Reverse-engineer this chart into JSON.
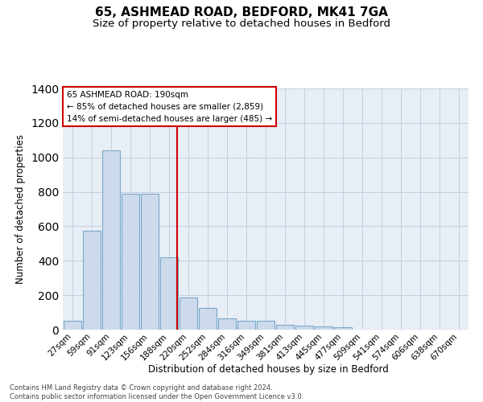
{
  "title1": "65, ASHMEAD ROAD, BEDFORD, MK41 7GA",
  "title2": "Size of property relative to detached houses in Bedford",
  "xlabel": "Distribution of detached houses by size in Bedford",
  "ylabel": "Number of detached properties",
  "bar_labels": [
    "27sqm",
    "59sqm",
    "91sqm",
    "123sqm",
    "156sqm",
    "188sqm",
    "220sqm",
    "252sqm",
    "284sqm",
    "316sqm",
    "349sqm",
    "381sqm",
    "413sqm",
    "445sqm",
    "477sqm",
    "509sqm",
    "541sqm",
    "574sqm",
    "606sqm",
    "638sqm",
    "670sqm"
  ],
  "bar_values": [
    50,
    575,
    1040,
    790,
    790,
    420,
    185,
    125,
    65,
    50,
    50,
    28,
    25,
    18,
    12,
    0,
    0,
    0,
    0,
    0,
    0
  ],
  "bar_color": "#ccdaeb",
  "bar_edge_color": "#7aa8cc",
  "vline_color": "#cc0000",
  "annotation_line1": "65 ASHMEAD ROAD: 190sqm",
  "annotation_line2": "← 85% of detached houses are smaller (2,859)",
  "annotation_line3": "14% of semi-detached houses are larger (485) →",
  "annotation_box_color": "#ffffff",
  "annotation_box_edge": "#cc0000",
  "ylim": [
    0,
    1400
  ],
  "yticks": [
    0,
    200,
    400,
    600,
    800,
    1000,
    1200,
    1400
  ],
  "footnote": "Contains HM Land Registry data © Crown copyright and database right 2024.\nContains public sector information licensed under the Open Government Licence v3.0.",
  "plot_bg_color": "#e8eef5",
  "grid_color": "#c5cfe0",
  "title1_fontsize": 11,
  "title2_fontsize": 9.5,
  "vline_x_index": 5.42
}
